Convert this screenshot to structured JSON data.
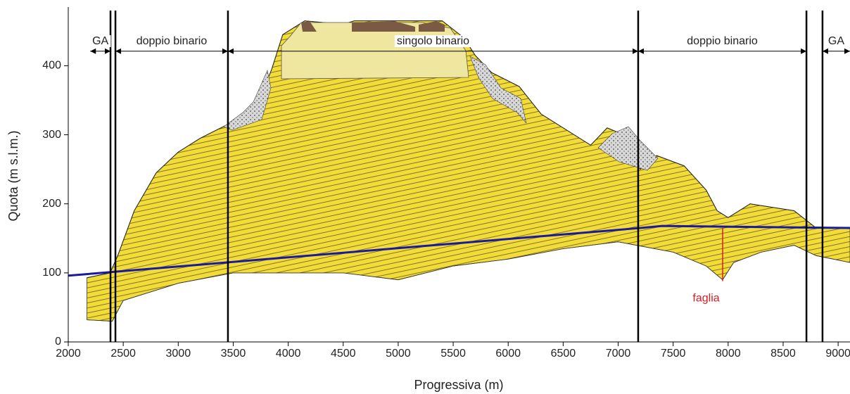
{
  "chart_data": {
    "type": "profile",
    "xlabel": "Progressiva (m)",
    "ylabel": "Quota (m s.l.m.)",
    "xlim": [
      2000,
      9108
    ],
    "ylim": [
      0,
      485
    ],
    "xticks": [
      2000,
      2500,
      3000,
      3500,
      4000,
      4500,
      5000,
      5500,
      6000,
      6500,
      7000,
      7500,
      8000,
      8500,
      9000
    ],
    "yticks": [
      0,
      100,
      200,
      300,
      400
    ],
    "surface": {
      "color": "#f2dc3a",
      "x": [
        2170,
        2380,
        2450,
        2600,
        2800,
        3000,
        3200,
        3450,
        3600,
        3750,
        3850,
        3950,
        4150,
        4500,
        4600,
        5000,
        5400,
        5600,
        5700,
        5850,
        6100,
        6300,
        6500,
        6750,
        6900,
        7050,
        7200,
        7350,
        7600,
        7800,
        7900,
        8000,
        8200,
        8400,
        8600,
        8800,
        9108
      ],
      "values": [
        93,
        100,
        125,
        190,
        245,
        275,
        295,
        315,
        330,
        355,
        395,
        445,
        465,
        460,
        465,
        465,
        465,
        440,
        415,
        390,
        370,
        330,
        310,
        285,
        310,
        300,
        250,
        270,
        255,
        220,
        190,
        180,
        200,
        195,
        190,
        165,
        165
      ]
    },
    "base": {
      "x": [
        2170,
        2400,
        2500,
        3000,
        3500,
        4500,
        5000,
        5500,
        6000,
        6500,
        7000,
        7500,
        7800,
        7950,
        8050,
        8300,
        8600,
        8800,
        9108
      ],
      "values": [
        32,
        30,
        60,
        85,
        100,
        100,
        90,
        110,
        120,
        135,
        145,
        130,
        110,
        90,
        115,
        130,
        140,
        125,
        115
      ]
    },
    "tunnel": {
      "color": "#1a1aa0",
      "x": [
        2000,
        7200,
        7400,
        9108
      ],
      "values": [
        96,
        165,
        168,
        165
      ]
    },
    "boundaries": [
      2384,
      2429,
      3452,
      7182,
      8712,
      8858
    ],
    "section_y": 421,
    "sections": [
      {
        "label": "GA",
        "start": 2200,
        "end": 2384
      },
      {
        "label": "doppio binario",
        "start": 2429,
        "end": 3452
      },
      {
        "label": "singolo binario",
        "start": 3452,
        "end": 7182
      },
      {
        "label": "doppio binario",
        "start": 7182,
        "end": 8712
      },
      {
        "label": "GA",
        "start": 8858,
        "end": 9108
      }
    ],
    "fault": {
      "label": "faglia",
      "color": "#d62020",
      "x": 7950,
      "top": 165,
      "bottom": 88,
      "label_x": 7800,
      "label_y": 63
    }
  }
}
